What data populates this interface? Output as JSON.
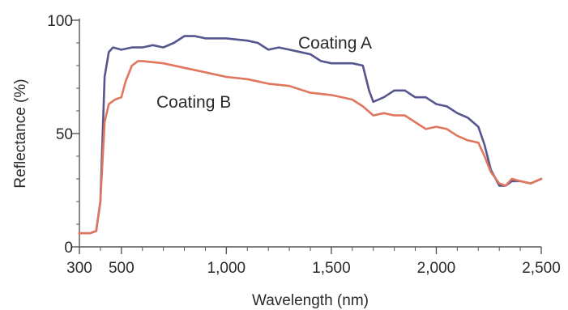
{
  "chart_data": {
    "type": "line",
    "title": "",
    "xlabel": "Wavelength (nm)",
    "ylabel": "Reflectance (%)",
    "xlim": [
      300,
      2500
    ],
    "ylim": [
      0,
      100
    ],
    "x_ticks": [
      300,
      500,
      1000,
      1500,
      2000,
      2500
    ],
    "x_tick_labels": [
      "300",
      "500",
      "1,000",
      "1,500",
      "2,000",
      "2,500"
    ],
    "y_ticks": [
      0,
      50,
      100
    ],
    "y_tick_labels": [
      "0",
      "50",
      "100"
    ],
    "grid": false,
    "legend": "inline labels",
    "series": [
      {
        "name": "Coating A",
        "color": "#56568f",
        "points": [
          [
            300,
            6
          ],
          [
            350,
            6
          ],
          [
            380,
            7
          ],
          [
            400,
            20
          ],
          [
            420,
            75
          ],
          [
            440,
            86
          ],
          [
            460,
            88
          ],
          [
            500,
            87
          ],
          [
            550,
            88
          ],
          [
            600,
            88
          ],
          [
            650,
            89
          ],
          [
            700,
            88
          ],
          [
            750,
            90
          ],
          [
            800,
            93
          ],
          [
            850,
            93
          ],
          [
            900,
            92
          ],
          [
            1000,
            92
          ],
          [
            1100,
            91
          ],
          [
            1150,
            90
          ],
          [
            1200,
            87
          ],
          [
            1250,
            88
          ],
          [
            1300,
            87
          ],
          [
            1350,
            86
          ],
          [
            1400,
            85
          ],
          [
            1450,
            82
          ],
          [
            1500,
            81
          ],
          [
            1600,
            81
          ],
          [
            1650,
            80
          ],
          [
            1680,
            69
          ],
          [
            1700,
            64
          ],
          [
            1750,
            66
          ],
          [
            1800,
            69
          ],
          [
            1850,
            69
          ],
          [
            1900,
            66
          ],
          [
            1950,
            66
          ],
          [
            2000,
            63
          ],
          [
            2050,
            62
          ],
          [
            2100,
            59
          ],
          [
            2150,
            57
          ],
          [
            2200,
            53
          ],
          [
            2230,
            45
          ],
          [
            2260,
            34
          ],
          [
            2300,
            27
          ],
          [
            2330,
            27
          ],
          [
            2360,
            29
          ],
          [
            2400,
            29
          ],
          [
            2450,
            28
          ],
          [
            2500,
            30
          ]
        ]
      },
      {
        "name": "Coating B",
        "color": "#e0765e",
        "points": [
          [
            300,
            6
          ],
          [
            350,
            6
          ],
          [
            380,
            7
          ],
          [
            400,
            20
          ],
          [
            420,
            55
          ],
          [
            440,
            63
          ],
          [
            470,
            65
          ],
          [
            500,
            66
          ],
          [
            520,
            73
          ],
          [
            550,
            80
          ],
          [
            580,
            82
          ],
          [
            600,
            82
          ],
          [
            700,
            81
          ],
          [
            800,
            79
          ],
          [
            900,
            77
          ],
          [
            1000,
            75
          ],
          [
            1100,
            74
          ],
          [
            1200,
            72
          ],
          [
            1300,
            71
          ],
          [
            1400,
            68
          ],
          [
            1500,
            67
          ],
          [
            1600,
            65
          ],
          [
            1650,
            62
          ],
          [
            1700,
            58
          ],
          [
            1750,
            59
          ],
          [
            1800,
            58
          ],
          [
            1850,
            58
          ],
          [
            1900,
            55
          ],
          [
            1950,
            52
          ],
          [
            2000,
            53
          ],
          [
            2050,
            52
          ],
          [
            2100,
            49
          ],
          [
            2150,
            47
          ],
          [
            2200,
            46
          ],
          [
            2230,
            40
          ],
          [
            2260,
            33
          ],
          [
            2300,
            28
          ],
          [
            2330,
            27
          ],
          [
            2360,
            30
          ],
          [
            2400,
            29
          ],
          [
            2450,
            28
          ],
          [
            2500,
            30
          ]
        ]
      }
    ]
  }
}
